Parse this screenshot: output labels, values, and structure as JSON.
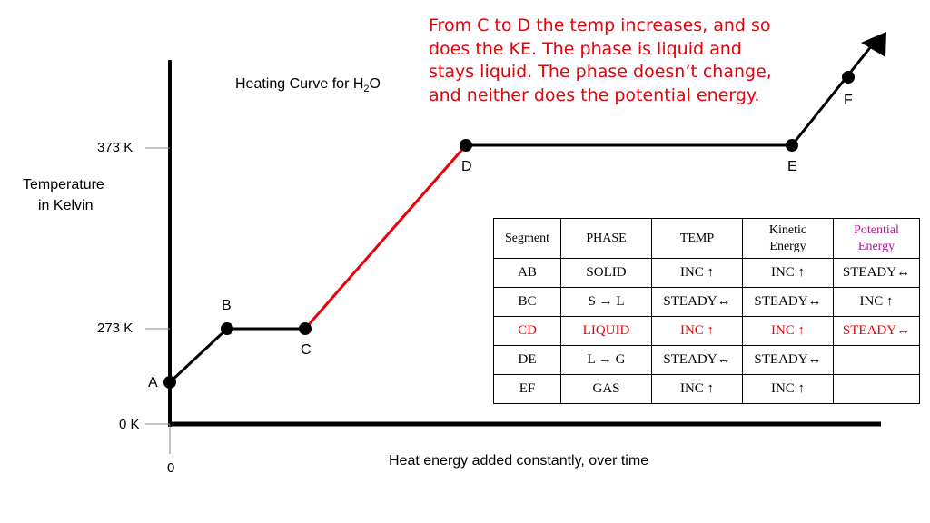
{
  "title": {
    "main": "Heating Curve for H",
    "sub": "2",
    "tail": "O"
  },
  "annotation": [
    "From C to D the temp increases, and so",
    "does the KE.  The phase is liquid and",
    "stays liquid.  The phase doesn’t change,",
    "and neither does the potential energy."
  ],
  "axis": {
    "ylabel_1": "Temperature",
    "ylabel_2": "in Kelvin",
    "xlabel": "Heat energy added constantly, over time",
    "origin": "0",
    "ticks": [
      "373 K",
      "273 K",
      "0 K"
    ]
  },
  "points": {
    "A": "A",
    "B": "B",
    "C": "C",
    "D": "D",
    "E": "E",
    "F": "F"
  },
  "colors": {
    "highlight": "#e8000b",
    "potential": "#b0189b",
    "line": "#000000"
  },
  "table": {
    "headers": [
      "Segment",
      "PHASE",
      "TEMP",
      "Kinetic Energy",
      "Potential Energy"
    ],
    "rows": [
      [
        "AB",
        "SOLID",
        "INC ↑",
        "INC ↑",
        "STEADY↔"
      ],
      [
        "BC",
        "S → L",
        "STEADY↔",
        "STEADY↔",
        "INC ↑"
      ],
      [
        "CD",
        "LIQUID",
        "INC ↑",
        "INC ↑",
        "STEADY↔"
      ],
      [
        "DE",
        "L → G",
        "STEADY↔",
        "STEADY↔",
        ""
      ],
      [
        "EF",
        "GAS",
        "INC ↑",
        "INC ↑",
        ""
      ]
    ]
  }
}
